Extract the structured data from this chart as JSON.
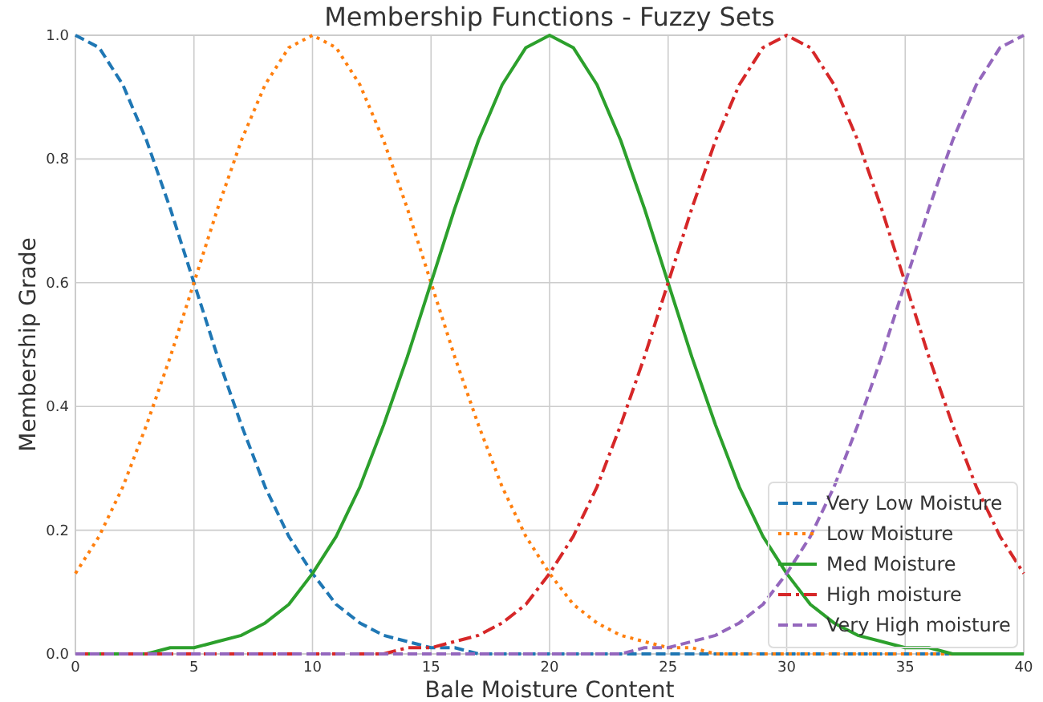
{
  "chart_data": {
    "type": "line",
    "title": "Membership Functions - Fuzzy Sets",
    "xlabel": "Bale Moisture Content",
    "ylabel": "Membership Grade",
    "x": [
      0,
      1,
      2,
      3,
      4,
      5,
      6,
      7,
      8,
      9,
      10,
      11,
      12,
      13,
      14,
      15,
      16,
      17,
      18,
      19,
      20,
      21,
      22,
      23,
      24,
      25,
      26,
      27,
      28,
      29,
      30,
      31,
      32,
      33,
      34,
      35,
      36,
      37,
      38,
      39,
      40
    ],
    "series": [
      {
        "name": "Very Low Moisture",
        "color": "#1f77b4",
        "line_style": "dashed",
        "values": [
          1,
          0.98,
          0.92,
          0.83,
          0.72,
          0.6,
          0.48,
          0.37,
          0.27,
          0.19,
          0.13,
          0.08,
          0.05,
          0.03,
          0.02,
          0.01,
          0.01,
          0,
          0,
          0,
          0,
          0,
          0,
          0,
          0,
          0,
          0,
          0,
          0,
          0,
          0,
          0,
          0,
          0,
          0,
          0,
          0,
          0,
          null,
          null,
          null
        ]
      },
      {
        "name": "Low Moisture",
        "color": "#ff7f0e",
        "line_style": "dotted",
        "values": [
          0.13,
          0.19,
          0.27,
          0.37,
          0.48,
          0.6,
          0.72,
          0.83,
          0.92,
          0.98,
          1,
          0.98,
          0.92,
          0.83,
          0.72,
          0.6,
          0.48,
          0.37,
          0.27,
          0.19,
          0.13,
          0.08,
          0.05,
          0.03,
          0.02,
          0.01,
          0.01,
          0,
          0,
          0,
          0,
          0,
          0,
          0,
          0,
          0,
          0,
          0,
          null,
          null,
          null
        ]
      },
      {
        "name": "Med Moisture",
        "color": "#2ca02c",
        "line_style": "solid",
        "values": [
          0,
          0,
          0,
          0,
          0.01,
          0.01,
          0.02,
          0.03,
          0.05,
          0.08,
          0.13,
          0.19,
          0.27,
          0.37,
          0.48,
          0.6,
          0.72,
          0.83,
          0.92,
          0.98,
          1,
          0.98,
          0.92,
          0.83,
          0.72,
          0.6,
          0.48,
          0.37,
          0.27,
          0.19,
          0.13,
          0.08,
          0.05,
          0.03,
          0.02,
          0.01,
          0.01,
          0,
          0,
          0,
          0
        ]
      },
      {
        "name": "High moisture",
        "color": "#d62728",
        "line_style": "dashdot",
        "values": [
          0,
          0,
          0,
          0,
          0,
          0,
          0,
          0,
          0,
          0,
          0,
          0,
          0,
          0,
          0.01,
          0.01,
          0.02,
          0.03,
          0.05,
          0.08,
          0.13,
          0.19,
          0.27,
          0.37,
          0.48,
          0.6,
          0.72,
          0.83,
          0.92,
          0.98,
          1,
          0.98,
          0.92,
          0.83,
          0.72,
          0.6,
          0.48,
          0.37,
          0.27,
          0.19,
          0.13
        ]
      },
      {
        "name": "Very High moisture",
        "color": "#9467bd",
        "line_style": "dashed",
        "values": [
          0,
          0,
          0,
          0,
          0,
          0,
          0,
          0,
          0,
          0,
          0,
          0,
          0,
          0,
          0,
          0,
          0,
          0,
          0,
          0,
          0,
          0,
          0,
          0,
          0.01,
          0.01,
          0.02,
          0.03,
          0.05,
          0.08,
          0.13,
          0.19,
          0.27,
          0.37,
          0.48,
          0.6,
          0.72,
          0.83,
          0.92,
          0.98,
          1
        ]
      }
    ],
    "xlim": [
      0,
      40
    ],
    "xticks": [
      0,
      5,
      10,
      15,
      20,
      25,
      30,
      35,
      40
    ],
    "ylim": [
      0,
      1
    ],
    "yticks": [
      {
        "value": 0,
        "label": "0.0"
      },
      {
        "value": 0.2,
        "label": "0.2"
      },
      {
        "value": 0.4,
        "label": "0.4"
      },
      {
        "value": 0.6,
        "label": "0.6"
      },
      {
        "value": 0.8,
        "label": "0.8"
      },
      {
        "value": 1,
        "label": "1.0"
      }
    ],
    "grid": true,
    "legend": "bottom right"
  }
}
